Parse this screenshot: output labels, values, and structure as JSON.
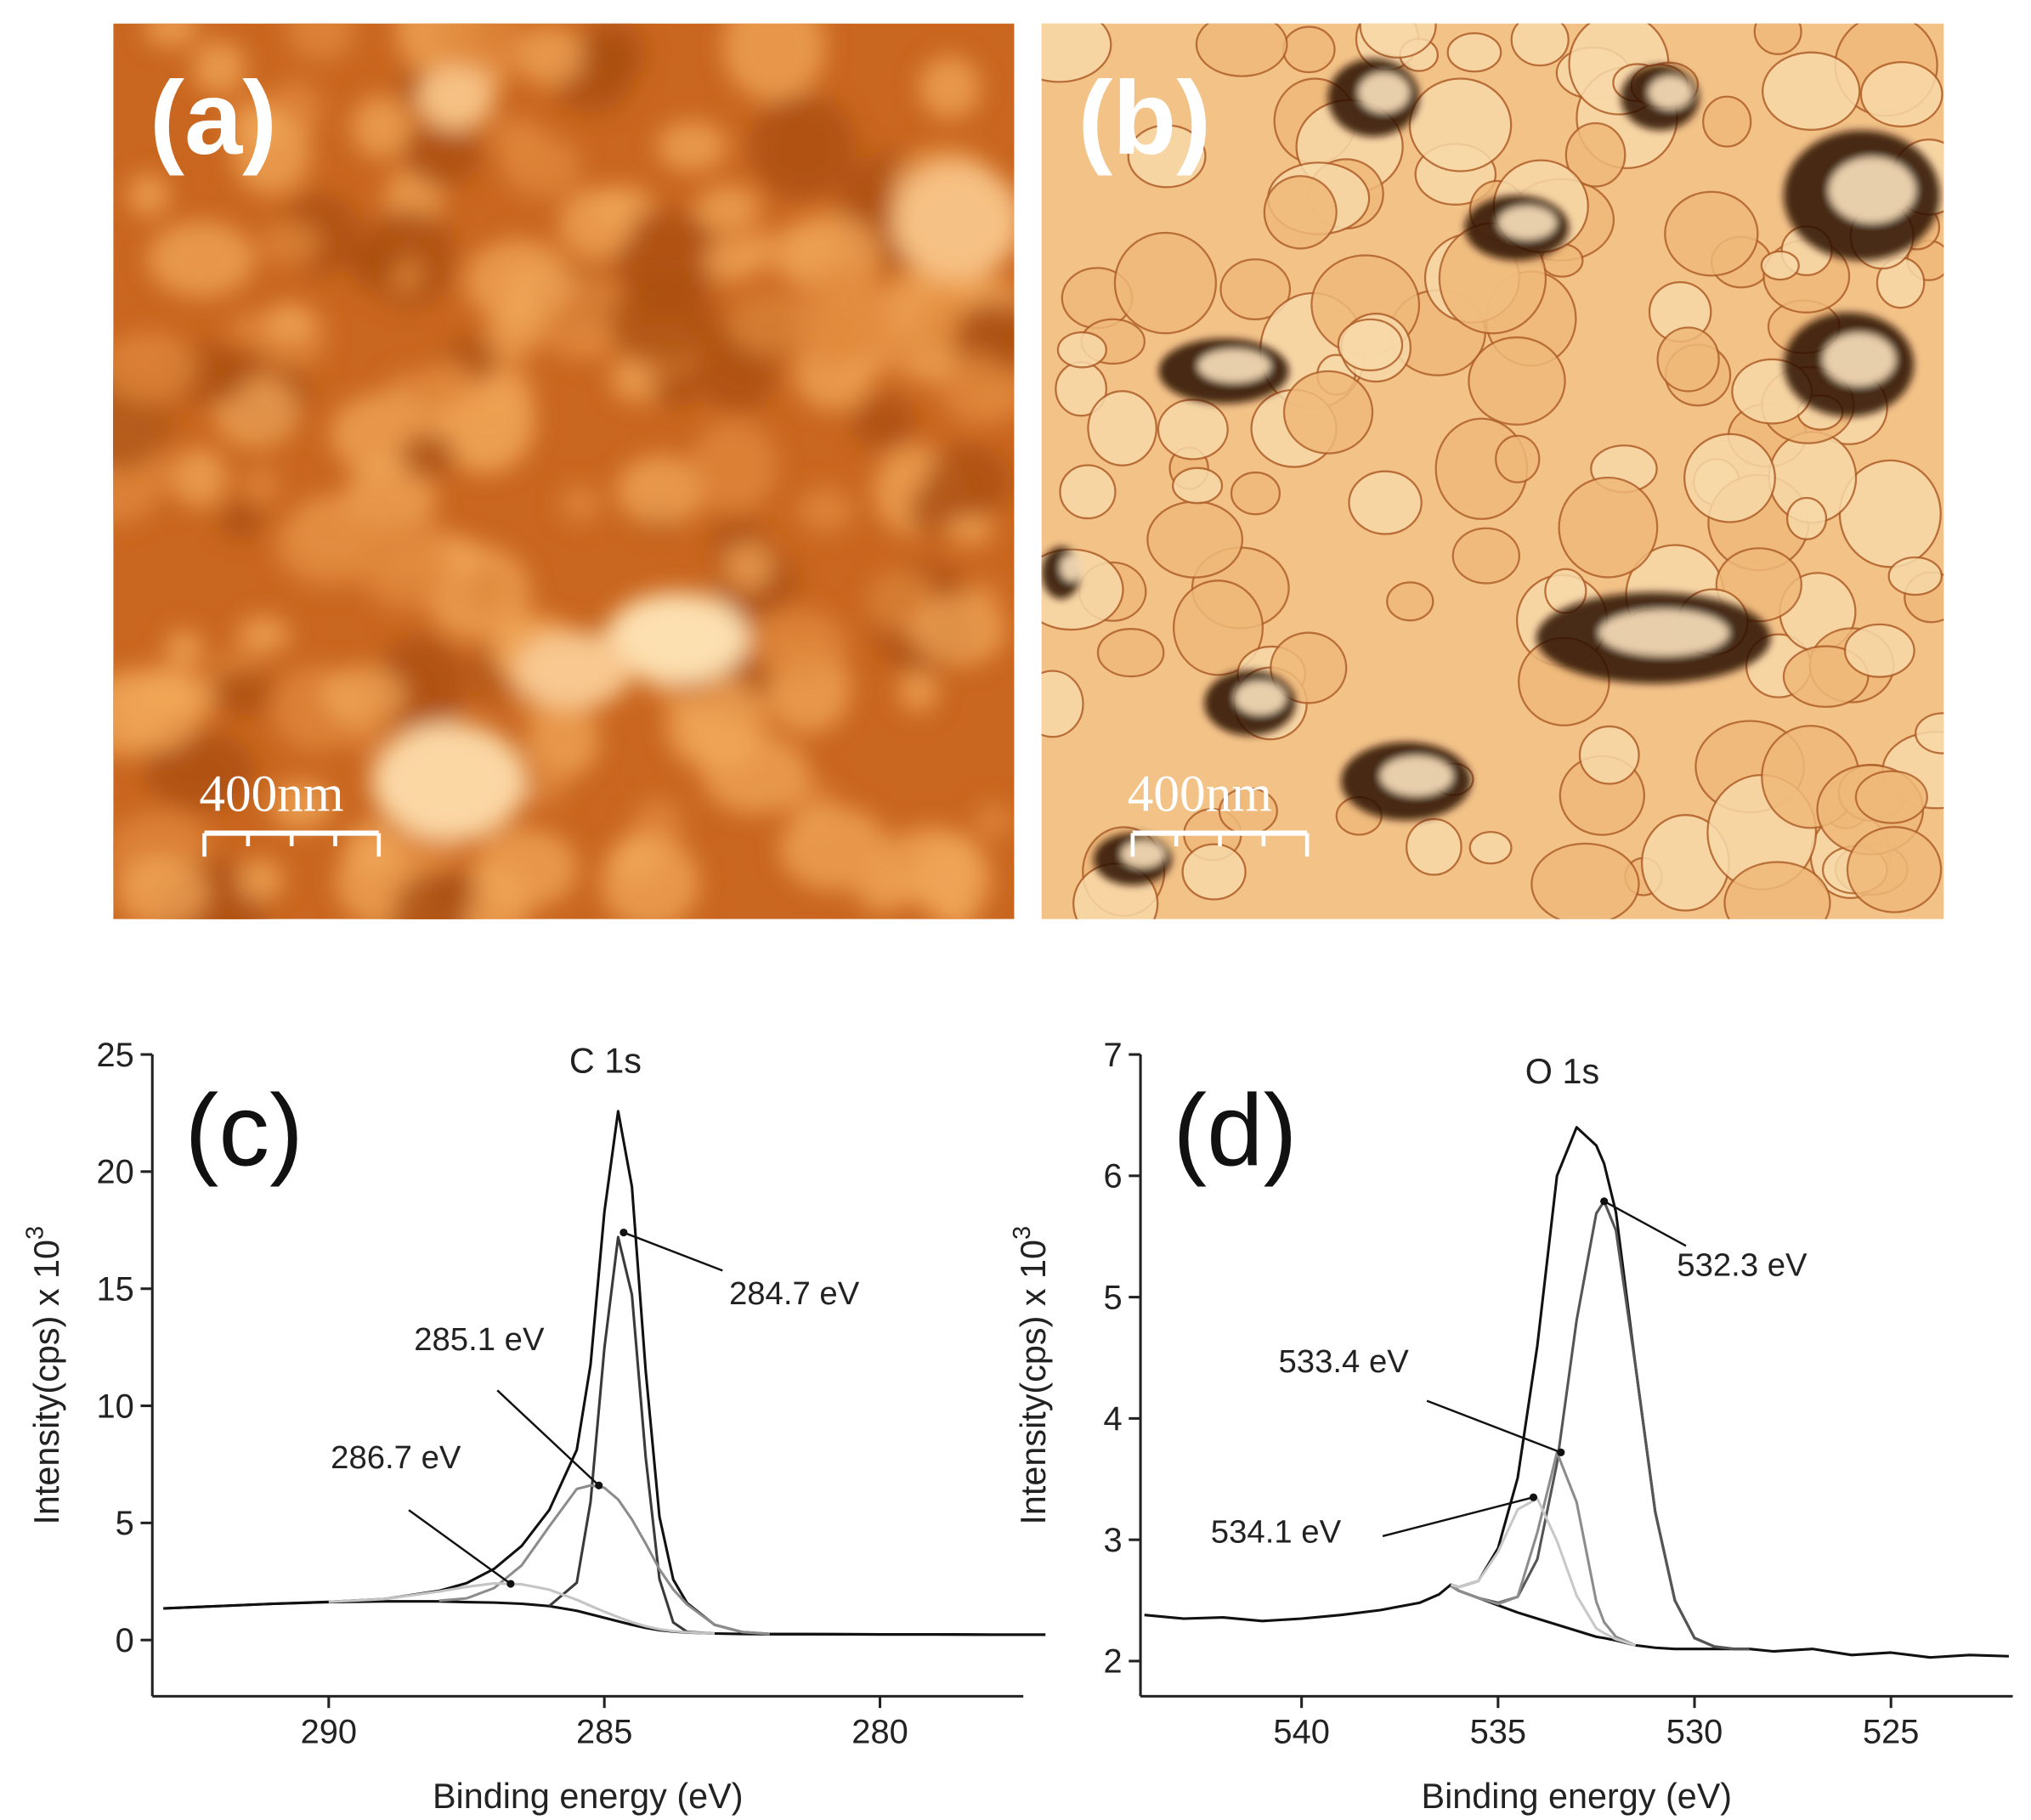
{
  "images": [
    {
      "label": "(a)",
      "scale_bar": "400nm"
    },
    {
      "label": "(b)",
      "scale_bar": "400nm"
    }
  ],
  "chart_data": [
    {
      "type": "line",
      "panel": "(c)",
      "title": "C 1s",
      "xlabel": "Binding energy (eV)",
      "ylabel": "Intensity(cps) x 10",
      "ylabel_exponent": "3",
      "xlim": [
        293.2,
        277.4
      ],
      "ylim": [
        -2.4,
        25
      ],
      "xticks": [
        290,
        285,
        280
      ],
      "yticks": [
        0,
        5,
        10,
        15,
        20,
        25
      ],
      "x": [
        293,
        292,
        291,
        290,
        289,
        288,
        287.5,
        287,
        286.5,
        286,
        285.5,
        285.25,
        285,
        284.75,
        284.5,
        284.25,
        284,
        283.75,
        283.5,
        283,
        282.5,
        282,
        281,
        280,
        279,
        278,
        277
      ],
      "series": [
        {
          "color": "#111111",
          "values": [
            1.35,
            1.45,
            1.55,
            1.63,
            1.75,
            2.1,
            2.43,
            3.04,
            4.02,
            5.55,
            8.12,
            11.76,
            18.26,
            22.58,
            19.36,
            11.49,
            5.26,
            2.58,
            1.58,
            0.65,
            0.34,
            0.26,
            0.25,
            0.24,
            0.24,
            0.23,
            0.23
          ]
        },
        {
          "color": "#111111",
          "values": [
            1.35,
            1.45,
            1.55,
            1.62,
            1.65,
            1.65,
            1.62,
            1.6,
            1.55,
            1.45,
            1.25,
            1.1,
            0.95,
            0.8,
            0.65,
            0.52,
            0.42,
            0.36,
            0.32,
            0.28,
            0.26,
            0.25,
            0.25,
            0.24,
            0.24,
            0.23,
            0.23
          ]
        },
        {
          "color": "#3a3a3a",
          "values": [
            null,
            null,
            null,
            null,
            null,
            null,
            null,
            null,
            null,
            1.45,
            2.45,
            5.9,
            12.45,
            17.2,
            14.75,
            7.8,
            2.6,
            0.75,
            0.35,
            0.28,
            null,
            null,
            null,
            null,
            null,
            null,
            null
          ]
        },
        {
          "color": "#8c8c8c",
          "values": [
            null,
            null,
            null,
            null,
            null,
            1.68,
            1.78,
            2.22,
            3.19,
            4.85,
            6.45,
            6.6,
            6.5,
            6.0,
            5.15,
            4.12,
            3.02,
            2.16,
            1.52,
            0.65,
            0.34,
            0.26,
            null,
            null,
            null,
            null,
            null
          ]
        },
        {
          "color": "#c4c4c4",
          "values": [
            null,
            null,
            null,
            1.63,
            1.75,
            2.07,
            2.27,
            2.42,
            2.38,
            2.15,
            1.72,
            1.46,
            1.21,
            0.98,
            0.76,
            0.59,
            0.46,
            0.38,
            0.33,
            0.28,
            null,
            null,
            null,
            null,
            null,
            null,
            null
          ]
        }
      ],
      "annotations": [
        {
          "text": "284.7 eV",
          "x": 284.65,
          "y": 17.4
        },
        {
          "text": "285.1 eV",
          "x": 285.1,
          "y": 6.6
        },
        {
          "text": "286.7 eV",
          "x": 286.7,
          "y": 2.4
        }
      ]
    },
    {
      "type": "line",
      "panel": "(d)",
      "title": "O 1s",
      "xlabel": "Binding energy (eV)",
      "ylabel": "Intensity(cps) x 10",
      "ylabel_exponent": "3",
      "xlim": [
        544.1,
        521.9
      ],
      "ylim": [
        1.71,
        7
      ],
      "xticks": [
        540,
        535,
        530,
        525
      ],
      "yticks": [
        2,
        3,
        4,
        5,
        6,
        7
      ],
      "x": [
        544,
        543,
        542,
        541,
        540,
        539,
        538,
        537,
        536.5,
        536.2,
        536,
        535.5,
        535,
        534.5,
        534,
        533.5,
        533,
        532.5,
        532.3,
        532,
        531.5,
        531,
        530.5,
        530,
        529.5,
        529,
        528.6,
        528,
        527,
        526,
        525,
        524,
        523,
        522
      ],
      "series": [
        {
          "color": "#111111",
          "values": [
            2.38,
            2.35,
            2.36,
            2.33,
            2.35,
            2.38,
            2.42,
            2.48,
            2.55,
            2.63,
            2.61,
            2.66,
            2.93,
            3.51,
            4.6,
            6.0,
            6.4,
            6.25,
            6.1,
            5.7,
            4.43,
            3.23,
            2.5,
            2.19,
            2.12,
            2.1,
            2.1,
            2.08,
            2.1,
            2.05,
            2.07,
            2.03,
            2.05,
            2.04
          ]
        },
        {
          "color": "#111111",
          "values": [
            null,
            null,
            null,
            null,
            null,
            null,
            null,
            null,
            null,
            2.62,
            2.58,
            2.52,
            2.46,
            2.4,
            2.35,
            2.3,
            2.25,
            2.2,
            2.19,
            2.17,
            2.13,
            2.11,
            2.1,
            2.1,
            2.1,
            2.1,
            2.1,
            null,
            null,
            null,
            null,
            null,
            null,
            null
          ]
        },
        {
          "color": "#555555",
          "values": [
            null,
            null,
            null,
            null,
            null,
            null,
            null,
            null,
            null,
            2.62,
            2.58,
            2.52,
            2.48,
            2.53,
            2.84,
            3.63,
            4.81,
            5.69,
            5.79,
            5.55,
            4.43,
            3.23,
            2.5,
            2.19,
            2.12,
            2.1,
            2.1,
            null,
            null,
            null,
            null,
            null,
            null,
            null
          ]
        },
        {
          "color": "#8c8c8c",
          "values": [
            null,
            null,
            null,
            null,
            null,
            null,
            null,
            null,
            null,
            2.62,
            2.58,
            2.52,
            2.47,
            2.53,
            3.06,
            3.72,
            3.31,
            2.49,
            2.32,
            2.2,
            2.13,
            null,
            null,
            null,
            null,
            null,
            null,
            null,
            null,
            null,
            null,
            null,
            null,
            null
          ]
        },
        {
          "color": "#c8c8c8",
          "values": [
            null,
            null,
            null,
            null,
            null,
            null,
            null,
            null,
            null,
            2.63,
            2.61,
            2.66,
            2.9,
            3.25,
            3.34,
            2.99,
            2.54,
            2.27,
            2.23,
            2.18,
            2.13,
            null,
            null,
            null,
            null,
            null,
            null,
            null,
            null,
            null,
            null,
            null,
            null,
            null
          ]
        }
      ],
      "annotations": [
        {
          "text": "532.3 eV",
          "x": 532.3,
          "y": 5.79
        },
        {
          "text": "533.4 eV",
          "x": 533.4,
          "y": 3.72
        },
        {
          "text": "534.1 eV",
          "x": 534.1,
          "y": 3.35
        }
      ]
    }
  ]
}
